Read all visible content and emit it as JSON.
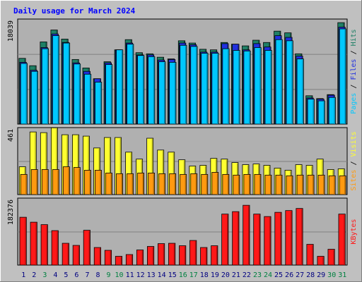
{
  "title": "Daily usage for March 2024",
  "colors": {
    "background": "#c0c0c0",
    "plot_bg": "#b0b0b0",
    "title": "#0000ff",
    "hits": "#1f8066",
    "files": "#2030e0",
    "pages": "#00c8ff",
    "visits": "#ffff30",
    "sites": "#ff9a10",
    "kbytes": "#ff1818",
    "weekday_label": "#000080",
    "weekend_label": "#008040"
  },
  "chart_data": [
    {
      "type": "bar",
      "panel": "hits-files-pages",
      "max_label": "18039",
      "ylim": [
        0,
        18039
      ],
      "legend": [
        {
          "name": "Pages",
          "color": "#00c8ff"
        },
        {
          "name": "Files",
          "color": "#2030e0"
        },
        {
          "name": "Hits",
          "color": "#1f8066"
        }
      ],
      "categories": [
        "1",
        "2",
        "3",
        "4",
        "5",
        "6",
        "7",
        "8",
        "9",
        "10",
        "11",
        "12",
        "13",
        "14",
        "15",
        "16",
        "17",
        "18",
        "19",
        "20",
        "21",
        "22",
        "23",
        "24",
        "25",
        "26",
        "27",
        "28",
        "29",
        "30",
        "31"
      ],
      "series": [
        {
          "name": "Hits",
          "values": [
            11600,
            10300,
            14500,
            16600,
            15000,
            11400,
            9900,
            8000,
            11000,
            13100,
            14900,
            12600,
            12400,
            11800,
            11500,
            14700,
            14300,
            13200,
            13100,
            14400,
            14100,
            13800,
            14800,
            14400,
            16400,
            16100,
            12400,
            5000,
            4500,
            5200,
            17900
          ]
        },
        {
          "name": "Files",
          "values": [
            10900,
            9500,
            13500,
            15900,
            14400,
            10800,
            9300,
            8000,
            10800,
            13100,
            14300,
            12200,
            12200,
            11300,
            11400,
            14300,
            14000,
            12700,
            12700,
            14200,
            14100,
            13100,
            14200,
            13600,
            15600,
            15300,
            12000,
            4600,
            4400,
            5100,
            17100
          ]
        },
        {
          "name": "Pages",
          "values": [
            10700,
            9300,
            13300,
            15600,
            14300,
            10600,
            8800,
            7400,
            10500,
            13100,
            14100,
            12100,
            11900,
            11000,
            10900,
            13900,
            13700,
            12500,
            12500,
            13300,
            13000,
            12900,
            13500,
            13000,
            14900,
            14700,
            11500,
            4400,
            4100,
            4700,
            16800
          ]
        }
      ]
    },
    {
      "type": "bar",
      "panel": "visits-sites",
      "max_label": "461",
      "ylim": [
        0,
        461
      ],
      "legend": [
        {
          "name": "Sites",
          "color": "#ff9a10"
        },
        {
          "name": "Visits",
          "color": "#ffff30"
        }
      ],
      "categories": [
        "1",
        "2",
        "3",
        "4",
        "5",
        "6",
        "7",
        "8",
        "9",
        "10",
        "11",
        "12",
        "13",
        "14",
        "15",
        "16",
        "17",
        "18",
        "19",
        "20",
        "21",
        "22",
        "23",
        "24",
        "25",
        "26",
        "27",
        "28",
        "29",
        "30",
        "31"
      ],
      "series": [
        {
          "name": "Visits",
          "values": [
            200,
            450,
            445,
            480,
            430,
            430,
            420,
            335,
            410,
            410,
            305,
            255,
            405,
            320,
            305,
            250,
            205,
            210,
            260,
            255,
            230,
            215,
            220,
            210,
            190,
            175,
            215,
            210,
            255,
            180,
            185
          ]
        },
        {
          "name": "Sites",
          "values": [
            145,
            180,
            180,
            180,
            200,
            195,
            175,
            175,
            155,
            150,
            150,
            155,
            155,
            150,
            150,
            145,
            150,
            145,
            160,
            145,
            140,
            145,
            145,
            140,
            140,
            135,
            140,
            140,
            140,
            135,
            135
          ]
        }
      ]
    },
    {
      "type": "bar",
      "panel": "kbytes",
      "max_label": "182376",
      "ylim": [
        0,
        182376
      ],
      "legend": [
        {
          "name": "KBytes",
          "color": "#ff1818"
        }
      ],
      "categories": [
        "1",
        "2",
        "3",
        "4",
        "5",
        "6",
        "7",
        "8",
        "9",
        "10",
        "11",
        "12",
        "13",
        "14",
        "15",
        "16",
        "17",
        "18",
        "19",
        "20",
        "21",
        "22",
        "23",
        "24",
        "25",
        "26",
        "27",
        "28",
        "29",
        "30",
        "31"
      ],
      "series": [
        {
          "name": "KBytes",
          "values": [
            136000,
            122000,
            115000,
            98000,
            62000,
            56000,
            99000,
            50000,
            42000,
            25000,
            30000,
            43000,
            53000,
            61000,
            62000,
            55000,
            70000,
            50000,
            55000,
            145000,
            152000,
            170000,
            145000,
            138000,
            150000,
            155000,
            161000,
            59000,
            25000,
            45000,
            145000
          ]
        }
      ]
    }
  ],
  "weekend_days": [
    3,
    9,
    10,
    16,
    17,
    23,
    24,
    30,
    31
  ]
}
